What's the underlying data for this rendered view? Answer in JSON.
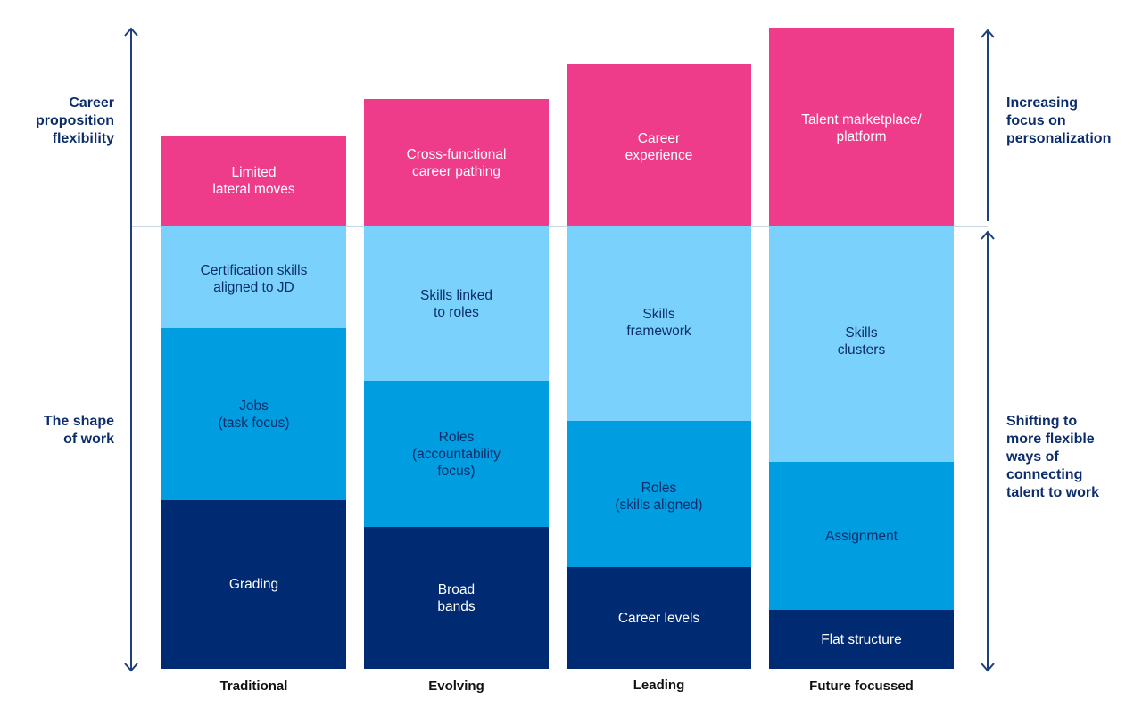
{
  "colors": {
    "flexibility": "#ef3c8a",
    "skills": "#7ad2fc",
    "work_unit": "#009de0",
    "structure": "#002b73",
    "text": "#0b2d6b"
  },
  "left_labels": {
    "top": "Career\nproposition\nflexibility",
    "bottom": "The shape\nof work"
  },
  "right_labels": {
    "top": "Increasing\nfocus on\npersonalization",
    "bottom": "Shifting to\nmore flexible\nways of\nconnecting\ntalent to work"
  },
  "columns": [
    {
      "category": "Traditional",
      "pink": "Limited\nlateral moves",
      "light": "Certification skills\naligned to JD",
      "mid": "Jobs\n(task focus)",
      "dark": "Grading"
    },
    {
      "category": "Evolving",
      "pink": "Cross-functional\ncareer pathing",
      "light": "Skills linked\nto roles",
      "mid": "Roles\n(accountability\nfocus)",
      "dark": "Broad\nbands"
    },
    {
      "category": "Leading",
      "pink": "Career\nexperience",
      "light": "Skills\nframework",
      "mid": "Roles\n(skills aligned)",
      "dark": "Career levels"
    },
    {
      "category": "Future focussed",
      "pink": "Talent marketplace/\nplatform",
      "light": "Skills\nclusters",
      "mid": "Assignment",
      "dark": "Flat structure"
    }
  ]
}
